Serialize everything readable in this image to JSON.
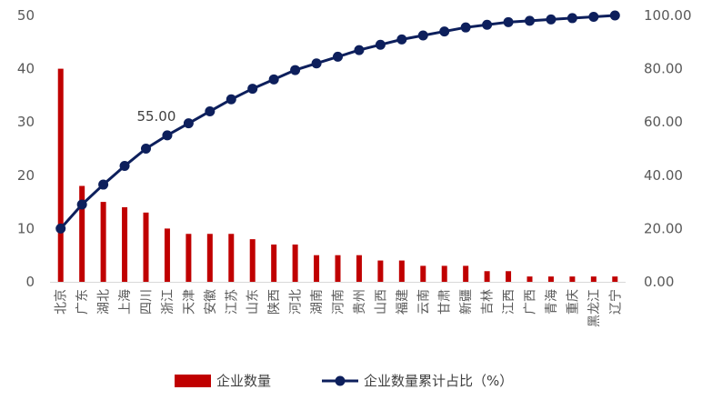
{
  "chart_data": {
    "type": "bar+line",
    "categories": [
      "北京",
      "广东",
      "湖北",
      "上海",
      "四川",
      "浙江",
      "天津",
      "安徽",
      "江苏",
      "山东",
      "陕西",
      "河北",
      "湖南",
      "河南",
      "贵州",
      "山西",
      "福建",
      "云南",
      "甘肃",
      "新疆",
      "吉林",
      "江西",
      "广西",
      "青海",
      "重庆",
      "黑龙江",
      "辽宁"
    ],
    "series": [
      {
        "name": "企业数量",
        "type": "bar",
        "axis": "left",
        "color": "#C00000",
        "values": [
          40,
          18,
          15,
          14,
          13,
          10,
          9,
          9,
          9,
          8,
          7,
          7,
          5,
          5,
          5,
          4,
          4,
          3,
          3,
          3,
          2,
          2,
          1,
          1,
          1,
          1,
          1
        ]
      },
      {
        "name": "企业数量累计占比（%）",
        "type": "line",
        "axis": "right",
        "color": "#0D1F5C",
        "values": [
          20.0,
          29.0,
          36.5,
          43.5,
          50.0,
          55.0,
          59.5,
          64.0,
          68.5,
          72.5,
          76.0,
          79.5,
          82.0,
          84.5,
          87.0,
          89.0,
          91.0,
          92.5,
          94.0,
          95.5,
          96.5,
          97.5,
          98.0,
          98.5,
          99.0,
          99.5,
          100.0
        ]
      }
    ],
    "y_left": {
      "min": 0,
      "max": 50,
      "ticks": [
        "0",
        "10",
        "20",
        "30",
        "40",
        "50"
      ]
    },
    "y_right": {
      "min": 0,
      "max": 100,
      "ticks": [
        "0.00",
        "20.00",
        "40.00",
        "60.00",
        "80.00",
        "100.00"
      ]
    },
    "annotations": [
      {
        "series": 1,
        "index": 5,
        "text": "55.00"
      }
    ],
    "legend_position": "bottom",
    "grid": false
  }
}
